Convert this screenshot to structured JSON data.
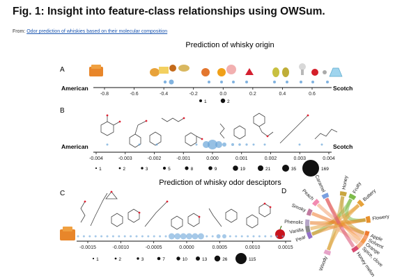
{
  "figure": {
    "title": "Fig. 1: Insight into feature-class relationships using OWSum.",
    "source_prefix": "From: ",
    "source_link": "Odor prediction of whiskies based on their molecular composition"
  },
  "panel_a": {
    "label": "A",
    "title": "Prediction of whisky origin",
    "left_label": "American",
    "right_label": "Scotch",
    "ticks": [
      "-0.8",
      "-0.6",
      "-0.4",
      "-0.2",
      "0.0",
      "0.2",
      "0.4",
      "0.6"
    ],
    "legend": [
      "1",
      "2"
    ]
  },
  "panel_b": {
    "label": "B",
    "left_label": "American",
    "right_label": "Scotch",
    "ticks": [
      "-0.004",
      "-0.003",
      "-0.002",
      "-0.001",
      "0.000",
      "0.001",
      "0.002",
      "0.003",
      "0.004"
    ],
    "legend": [
      "1",
      "2",
      "3",
      "5",
      "8",
      "9",
      "19",
      "21",
      "35",
      "169"
    ]
  },
  "panel_c": {
    "label": "C",
    "title": "Prediction of whisky odor desciptors",
    "ticks": [
      "-0.0015",
      "-0.0010",
      "-0.0005",
      "0.0000",
      "0.0005",
      "0.0010",
      "0.0015"
    ],
    "legend": [
      "1",
      "2",
      "3",
      "7",
      "10",
      "13",
      "26",
      "115"
    ]
  },
  "panel_d": {
    "label": "D",
    "descriptors": [
      "Honey",
      "Fruity",
      "Buttery",
      "Flowery",
      "Apple",
      "Solvent",
      "Orange",
      "Spice, clove",
      "Honey melon",
      "Woody",
      "Pear",
      "Vanilla",
      "Phenolic",
      "Smoky",
      "Peach",
      "Caramel"
    ]
  },
  "colors": {
    "point": "#6aa5d9",
    "axis": "#111",
    "link": "#1a55b0"
  }
}
